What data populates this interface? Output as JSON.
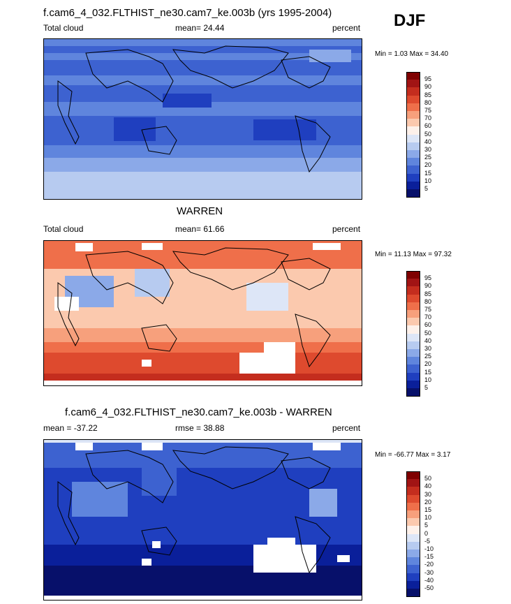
{
  "header": {
    "main_title": "f.cam6_4_032.FLTHIST_ne30.cam7_ke.003b (yrs 1995-2004)",
    "season": "DJF"
  },
  "panels": [
    {
      "id": "model",
      "title": "",
      "left_label": "Total cloud",
      "center_label": "mean=  24.44",
      "right_label": "percent",
      "minmax": "Min =   1.03 Max =  34.40",
      "colorbar_labels": [
        "95",
        "90",
        "85",
        "80",
        "75",
        "70",
        "60",
        "50",
        "40",
        "30",
        "25",
        "20",
        "15",
        "10",
        "5"
      ]
    },
    {
      "id": "obs",
      "title": "WARREN",
      "left_label": "Total cloud",
      "center_label": "mean=  61.66",
      "right_label": "percent",
      "minmax": "Min =  11.13 Max =  97.32",
      "colorbar_labels": [
        "95",
        "90",
        "85",
        "80",
        "75",
        "70",
        "60",
        "50",
        "40",
        "30",
        "25",
        "20",
        "15",
        "10",
        "5"
      ]
    },
    {
      "id": "diff",
      "title": "f.cam6_4_032.FLTHIST_ne30.cam7_ke.003b - WARREN",
      "left_label": "mean = -37.22",
      "center_label": "rmse =  38.88",
      "right_label": "percent",
      "minmax": "Min = -66.77 Max =   3.17",
      "colorbar_labels": [
        "50",
        "40",
        "30",
        "20",
        "15",
        "10",
        "5",
        "0",
        "-5",
        "-10",
        "-15",
        "-20",
        "-30",
        "-40",
        "-50"
      ]
    }
  ],
  "colors": {
    "colorbar": [
      "#7f0000",
      "#a11414",
      "#c42d1e",
      "#de4a2e",
      "#ef6f4a",
      "#f7a07c",
      "#fbc9ae",
      "#fdf1ea",
      "#dde6f7",
      "#b7cbf0",
      "#8ba9e8",
      "#5f85dd",
      "#3d62d0",
      "#1f3fbf",
      "#0a1f9a",
      "#07106a"
    ]
  },
  "chart_data": [
    {
      "type": "heatmap",
      "title": "f.cam6_4_032.FLTHIST_ne30.cam7_ke.003b (yrs 1995-2004)",
      "subtitle": "DJF",
      "variable": "Total cloud",
      "units": "percent",
      "mean": 24.44,
      "min": 1.03,
      "max": 34.4,
      "contour_levels": [
        5,
        10,
        15,
        20,
        25,
        30,
        40,
        50,
        60,
        70,
        75,
        80,
        85,
        90,
        95
      ]
    },
    {
      "type": "heatmap",
      "title": "WARREN",
      "variable": "Total cloud",
      "units": "percent",
      "mean": 61.66,
      "min": 11.13,
      "max": 97.32,
      "contour_levels": [
        5,
        10,
        15,
        20,
        25,
        30,
        40,
        50,
        60,
        70,
        75,
        80,
        85,
        90,
        95
      ]
    },
    {
      "type": "heatmap",
      "title": "f.cam6_4_032.FLTHIST_ne30.cam7_ke.003b - WARREN",
      "units": "percent",
      "mean": -37.22,
      "rmse": 38.88,
      "min": -66.77,
      "max": 3.17,
      "contour_levels": [
        -50,
        -40,
        -30,
        -20,
        -15,
        -10,
        -5,
        0,
        5,
        10,
        15,
        20,
        30,
        40,
        50
      ]
    }
  ]
}
